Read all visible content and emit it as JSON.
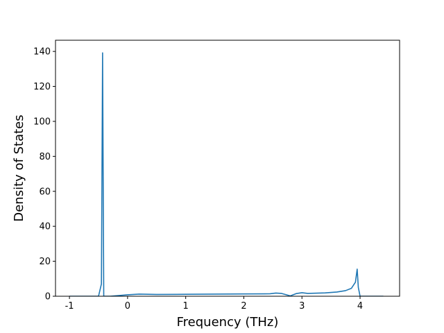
{
  "chart_data": {
    "type": "line",
    "xlabel": "Frequency (THz)",
    "ylabel": "Density of States",
    "x": [
      -1.0,
      -0.5,
      -0.45,
      -0.43,
      -0.41,
      -0.3,
      0,
      0.2,
      0.5,
      1,
      2,
      2.45,
      2.55,
      2.65,
      2.8,
      2.9,
      3.0,
      3.1,
      3.4,
      3.6,
      3.75,
      3.85,
      3.92,
      3.95,
      3.97,
      4.0,
      4.4
    ],
    "series": [
      {
        "color": "#1f77b4",
        "values": [
          0,
          0,
          7,
          139.2,
          0,
          0,
          0.8,
          1.2,
          1.0,
          1.1,
          1.3,
          1.4,
          1.8,
          1.6,
          0.2,
          1.5,
          2.0,
          1.6,
          1.9,
          2.4,
          3.2,
          4.5,
          8,
          15.5,
          5,
          0,
          0
        ]
      }
    ],
    "xlim": [
      -1.24,
      4.68
    ],
    "ylim": [
      0,
      146.4
    ],
    "xticks": [
      -1,
      0,
      1,
      2,
      3,
      4
    ],
    "yticks": [
      0,
      20,
      40,
      60,
      80,
      100,
      120,
      140
    ]
  }
}
